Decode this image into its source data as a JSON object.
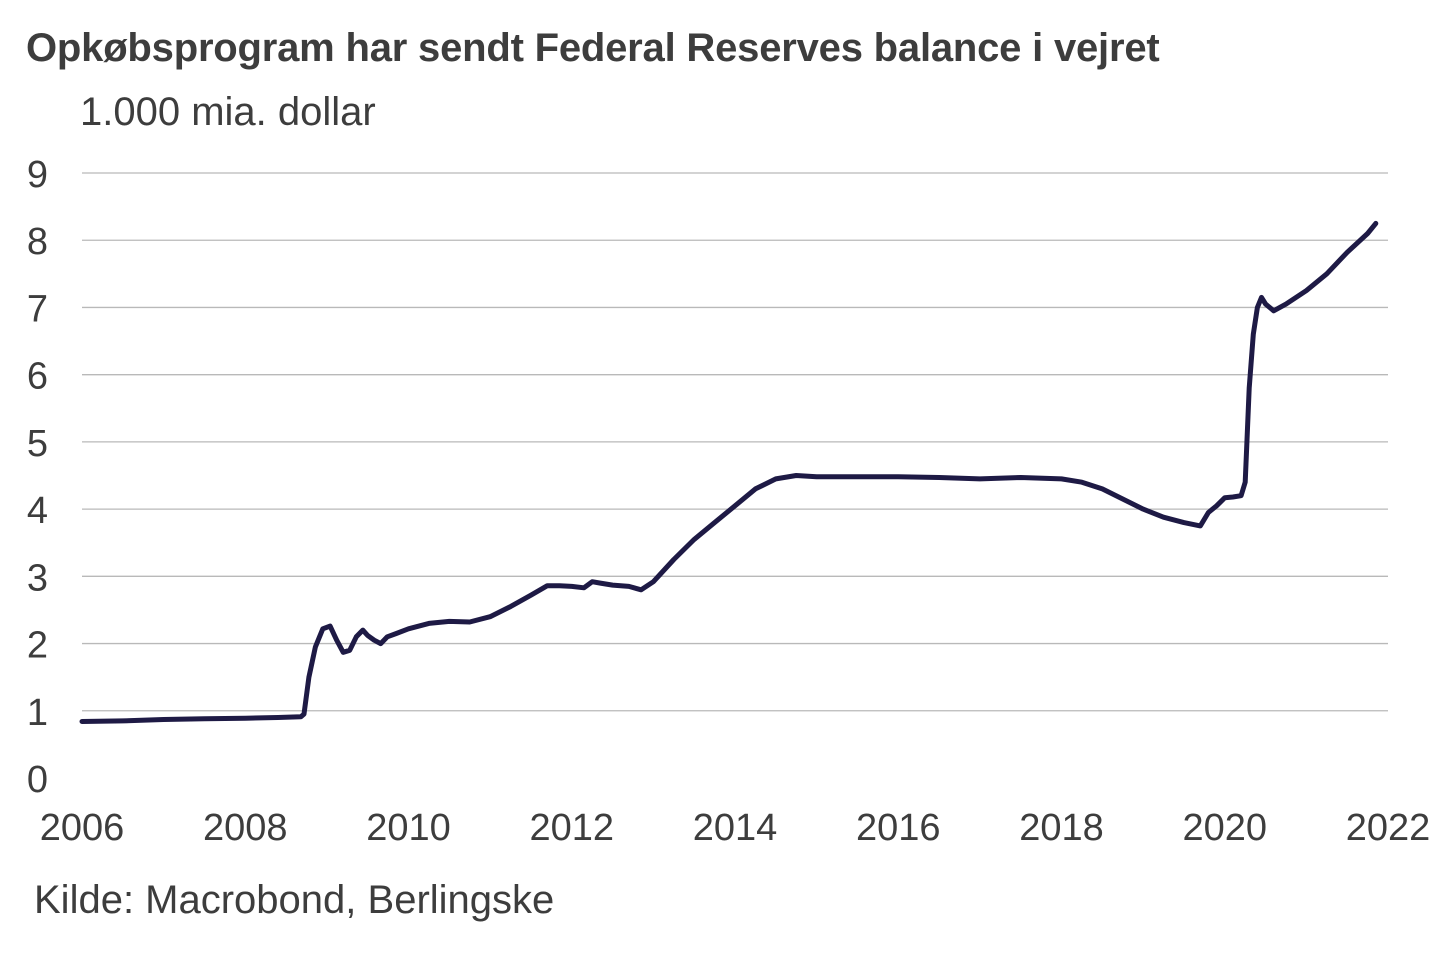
{
  "chart_data": {
    "type": "line",
    "title": "Opkøbsprogram har sendt Federal Reserves balance i vejret",
    "ylabel": "1.000 mia. dollar",
    "source": "Kilde: Macrobond, Berlingske",
    "xlim": [
      2006,
      2022
    ],
    "ylim": [
      0,
      9
    ],
    "x_ticks": [
      "2006",
      "2008",
      "2010",
      "2012",
      "2014",
      "2016",
      "2018",
      "2020",
      "2022"
    ],
    "y_ticks": [
      "0",
      "1",
      "2",
      "3",
      "4",
      "5",
      "6",
      "7",
      "8",
      "9"
    ],
    "grid": true,
    "line_color": "#1e1a45",
    "series": [
      {
        "name": "Federal Reserves balance",
        "x": [
          2006.0,
          2006.5,
          2007.0,
          2007.5,
          2008.0,
          2008.4,
          2008.68,
          2008.72,
          2008.78,
          2008.86,
          2008.95,
          2009.04,
          2009.12,
          2009.2,
          2009.28,
          2009.36,
          2009.44,
          2009.5,
          2009.58,
          2009.66,
          2009.74,
          2009.85,
          2010.0,
          2010.25,
          2010.5,
          2010.75,
          2011.0,
          2011.25,
          2011.5,
          2011.7,
          2011.85,
          2012.0,
          2012.15,
          2012.25,
          2012.35,
          2012.5,
          2012.7,
          2012.85,
          2013.0,
          2013.25,
          2013.5,
          2013.75,
          2014.0,
          2014.25,
          2014.5,
          2014.75,
          2015.0,
          2015.5,
          2016.0,
          2016.5,
          2017.0,
          2017.5,
          2018.0,
          2018.25,
          2018.5,
          2018.75,
          2019.0,
          2019.25,
          2019.5,
          2019.7,
          2019.8,
          2019.9,
          2020.0,
          2020.1,
          2020.2,
          2020.25,
          2020.3,
          2020.35,
          2020.4,
          2020.45,
          2020.5,
          2020.6,
          2020.75,
          2021.0,
          2021.25,
          2021.5,
          2021.75,
          2021.85
        ],
        "values": [
          0.84,
          0.85,
          0.87,
          0.88,
          0.89,
          0.9,
          0.91,
          0.95,
          1.5,
          1.95,
          2.22,
          2.26,
          2.05,
          1.87,
          1.9,
          2.1,
          2.2,
          2.12,
          2.05,
          2.0,
          2.1,
          2.15,
          2.22,
          2.3,
          2.33,
          2.32,
          2.4,
          2.55,
          2.72,
          2.86,
          2.86,
          2.85,
          2.83,
          2.92,
          2.9,
          2.87,
          2.85,
          2.8,
          2.92,
          3.25,
          3.55,
          3.8,
          4.05,
          4.3,
          4.45,
          4.5,
          4.48,
          4.48,
          4.48,
          4.47,
          4.45,
          4.47,
          4.45,
          4.4,
          4.3,
          4.15,
          4.0,
          3.88,
          3.8,
          3.75,
          3.95,
          4.05,
          4.17,
          4.18,
          4.2,
          4.4,
          5.8,
          6.6,
          7.0,
          7.15,
          7.05,
          6.95,
          7.05,
          7.25,
          7.5,
          7.82,
          8.1,
          8.25
        ]
      }
    ]
  }
}
